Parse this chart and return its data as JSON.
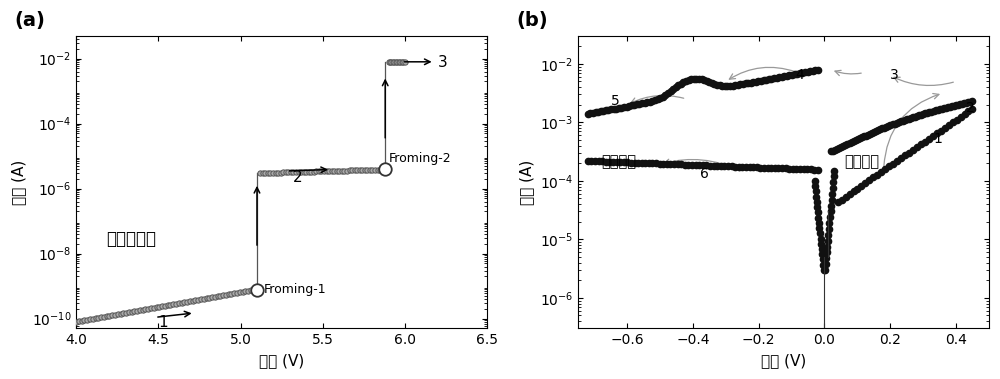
{
  "panel_a": {
    "label": "(a)",
    "xlabel": "电压 (V)",
    "ylabel": "电流 (A)",
    "title": "电形成过程",
    "xlim": [
      4.0,
      6.5
    ],
    "xticks": [
      4.0,
      4.5,
      5.0,
      5.5,
      6.0,
      6.5
    ],
    "yticks": [
      1e-10,
      1e-08,
      1e-06,
      0.0001,
      0.01
    ],
    "ymin": 5e-11,
    "ymax": 0.05
  },
  "panel_b": {
    "label": "(b)",
    "xlabel": "电压 (V)",
    "ylabel": "电流 (A)",
    "xlim": [
      -0.75,
      0.5
    ],
    "xticks": [
      -0.6,
      -0.4,
      -0.2,
      0.0,
      0.2,
      0.4
    ],
    "yticks": [
      1e-06,
      1e-05,
      0.0001,
      0.001,
      0.01
    ],
    "ymin": 3e-07,
    "ymax": 0.03,
    "text_reset": "复位过程",
    "text_set": "置位过程"
  },
  "dot_color": "#111111",
  "open_circle_facecolor": "white",
  "open_circle_edgecolor": "#333333",
  "gray_curve_color": "#999999",
  "bg_color": "white"
}
